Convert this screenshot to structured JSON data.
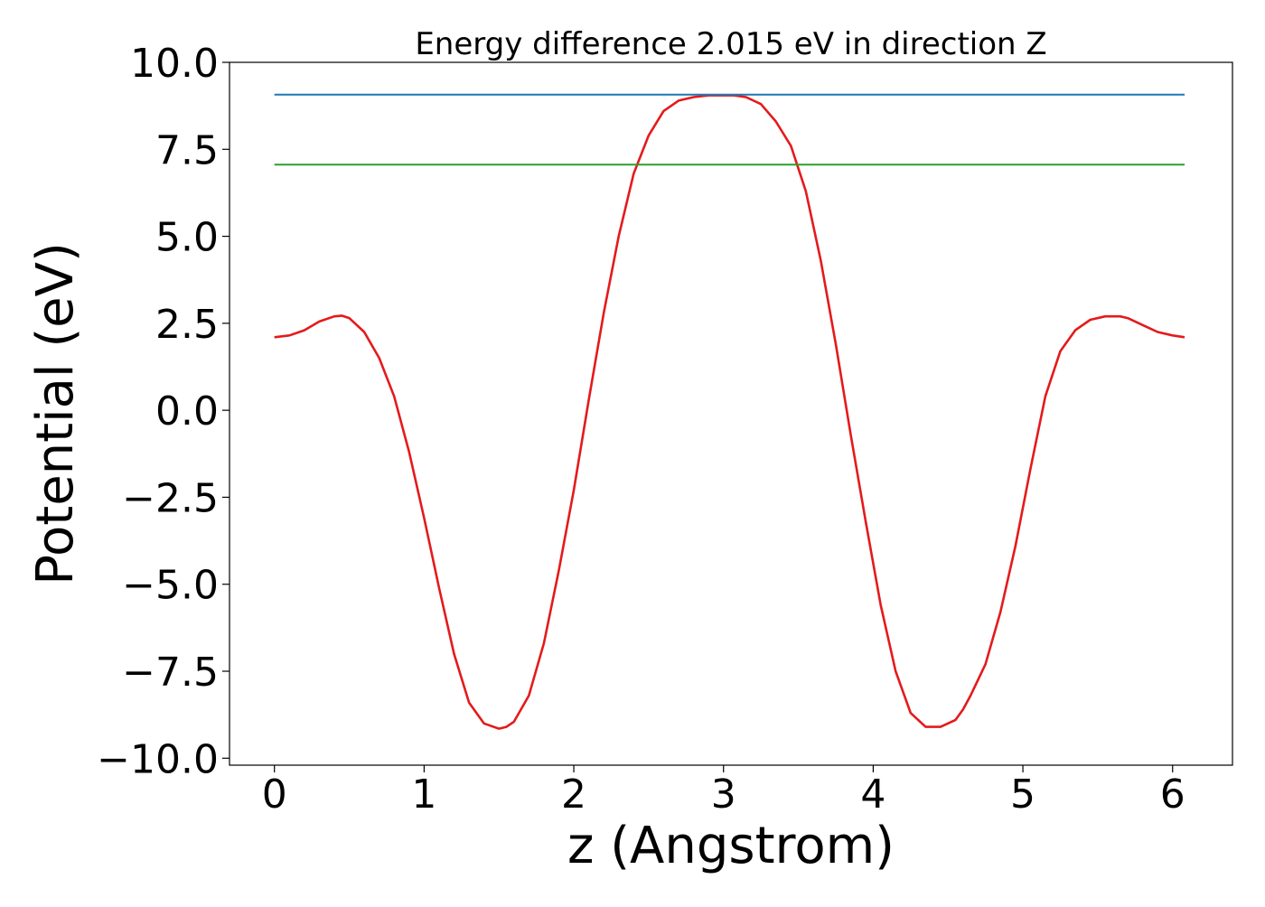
{
  "chart_data": {
    "type": "line",
    "title": "Energy difference 2.015 eV in direction Z",
    "xlabel": "z (Angstrom)",
    "ylabel": "Potential (eV)",
    "xlim": [
      -0.3,
      6.4
    ],
    "ylim": [
      -10.2,
      10.0
    ],
    "xticks": [
      0,
      1,
      2,
      3,
      4,
      5,
      6
    ],
    "xtick_labels": [
      "0",
      "1",
      "2",
      "3",
      "4",
      "5",
      "6"
    ],
    "yticks": [
      10.0,
      7.5,
      5.0,
      2.5,
      0.0,
      -2.5,
      -5.0,
      -7.5,
      -10.0
    ],
    "ytick_labels": [
      "10.0",
      "7.5",
      "5.0",
      "2.5",
      "0.0",
      "−2.5",
      "−5.0",
      "−7.5",
      "−10.0"
    ],
    "grid": false,
    "legend": false,
    "series": [
      {
        "color": "#e41a1c",
        "x": [
          0.0,
          0.1,
          0.2,
          0.3,
          0.4,
          0.45,
          0.5,
          0.6,
          0.7,
          0.8,
          0.9,
          1.0,
          1.1,
          1.2,
          1.3,
          1.4,
          1.5,
          1.55,
          1.6,
          1.7,
          1.8,
          1.9,
          2.0,
          2.1,
          2.2,
          2.3,
          2.4,
          2.5,
          2.6,
          2.7,
          2.8,
          2.9,
          3.0,
          3.07,
          3.15,
          3.25,
          3.35,
          3.45,
          3.55,
          3.65,
          3.75,
          3.85,
          3.95,
          4.05,
          4.15,
          4.25,
          4.35,
          4.45,
          4.55,
          4.6,
          4.65,
          4.75,
          4.85,
          4.95,
          5.05,
          5.15,
          5.25,
          5.35,
          5.45,
          5.55,
          5.65,
          5.7,
          5.8,
          5.9,
          6.0,
          6.08
        ],
        "y": [
          2.1,
          2.15,
          2.3,
          2.55,
          2.7,
          2.72,
          2.65,
          2.25,
          1.5,
          0.4,
          -1.2,
          -3.1,
          -5.1,
          -7.0,
          -8.4,
          -9.0,
          -9.15,
          -9.1,
          -8.95,
          -8.2,
          -6.7,
          -4.6,
          -2.3,
          0.3,
          2.8,
          5.0,
          6.8,
          7.9,
          8.6,
          8.9,
          9.0,
          9.05,
          9.05,
          9.05,
          9.0,
          8.8,
          8.3,
          7.6,
          6.3,
          4.3,
          1.9,
          -0.7,
          -3.2,
          -5.6,
          -7.5,
          -8.7,
          -9.1,
          -9.1,
          -8.9,
          -8.6,
          -8.2,
          -7.3,
          -5.8,
          -3.9,
          -1.7,
          0.4,
          1.7,
          2.3,
          2.6,
          2.7,
          2.7,
          2.65,
          2.45,
          2.25,
          2.15,
          2.1
        ]
      },
      {
        "color": "#1f77b4",
        "x": [
          0.0,
          6.08
        ],
        "y": [
          9.07,
          9.07
        ]
      },
      {
        "color": "#2ca02c",
        "x": [
          0.0,
          6.08
        ],
        "y": [
          7.06,
          7.06
        ]
      }
    ]
  }
}
